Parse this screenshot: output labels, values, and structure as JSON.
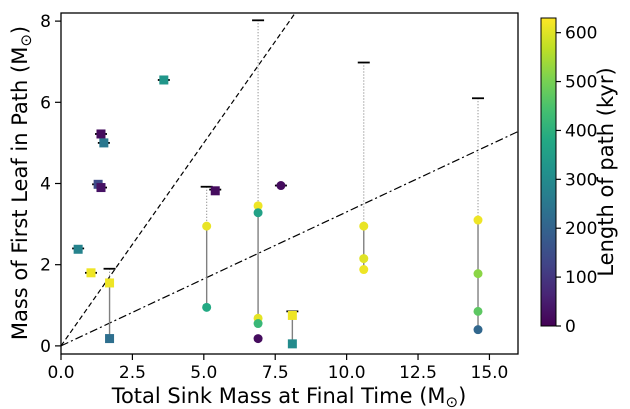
{
  "chart_data": {
    "type": "scatter",
    "xlabel": "Total Sink Mass at Final Time (M",
    "xlabel_sub": "⊙",
    "xlabel_close": ")",
    "ylabel": "Mass of First Leaf in Path (M",
    "ylabel_sub": "⊙",
    "ylabel_close": ")",
    "colorbar_label": "Length of path (kyr)",
    "xlim": [
      0,
      16
    ],
    "ylim": [
      -0.2,
      8.2
    ],
    "x_ticks": [
      0.0,
      2.5,
      5.0,
      7.5,
      10.0,
      12.5,
      15.0
    ],
    "x_tick_labels": [
      "0.0",
      "2.5",
      "5.0",
      "7.5",
      "10.0",
      "12.5",
      "15.0"
    ],
    "y_ticks": [
      0,
      2,
      4,
      6,
      8
    ],
    "y_tick_labels": [
      "0",
      "2",
      "4",
      "6",
      "8"
    ],
    "colorbar_range": [
      0,
      630
    ],
    "colorbar_ticks": [
      0,
      100,
      200,
      300,
      400,
      500,
      600
    ],
    "colorbar_tick_labels": [
      "0",
      "100",
      "200",
      "300",
      "400",
      "500",
      "600"
    ],
    "colormap": "viridis",
    "reference_lines": [
      {
        "style": "dashed",
        "slope": 1.0
      },
      {
        "style": "dashdot",
        "slope": 0.33
      }
    ],
    "total_mass_marks": [
      {
        "x": 0.6,
        "y": 2.4
      },
      {
        "x": 1.05,
        "y": 1.8
      },
      {
        "x": 1.3,
        "y": 3.98
      },
      {
        "x": 1.4,
        "y": 3.9
      },
      {
        "x": 1.4,
        "y": 5.22
      },
      {
        "x": 1.5,
        "y": 5.0
      },
      {
        "x": 1.7,
        "y": 1.9
      },
      {
        "x": 3.6,
        "y": 6.55
      },
      {
        "x": 5.1,
        "y": 3.92
      },
      {
        "x": 5.4,
        "y": 3.85
      },
      {
        "x": 6.9,
        "y": 8.02
      },
      {
        "x": 7.7,
        "y": 3.95
      },
      {
        "x": 8.1,
        "y": 0.85
      },
      {
        "x": 10.6,
        "y": 6.98
      },
      {
        "x": 14.6,
        "y": 6.1
      }
    ],
    "connectors": [
      {
        "x": 1.7,
        "from": 1.9,
        "to": 1.55,
        "style": "dotted"
      },
      {
        "x": 1.7,
        "from": 1.55,
        "to": 0.18,
        "style": "solid"
      },
      {
        "x": 5.1,
        "from": 3.92,
        "to": 2.95,
        "style": "dotted"
      },
      {
        "x": 5.1,
        "from": 2.95,
        "to": 0.95,
        "style": "solid"
      },
      {
        "x": 6.9,
        "from": 8.02,
        "to": 3.45,
        "style": "dotted"
      },
      {
        "x": 6.9,
        "from": 3.45,
        "to": 0.55,
        "style": "solid"
      },
      {
        "x": 8.1,
        "from": 0.85,
        "to": 0.75,
        "style": "dotted"
      },
      {
        "x": 8.1,
        "from": 0.75,
        "to": 0.05,
        "style": "solid"
      },
      {
        "x": 10.6,
        "from": 6.98,
        "to": 2.95,
        "style": "dotted"
      },
      {
        "x": 10.6,
        "from": 2.95,
        "to": 1.88,
        "style": "solid"
      },
      {
        "x": 14.6,
        "from": 6.1,
        "to": 3.1,
        "style": "dotted"
      },
      {
        "x": 14.6,
        "from": 3.1,
        "to": 0.4,
        "style": "solid"
      }
    ],
    "points": [
      {
        "x": 0.6,
        "y": 2.38,
        "length": 280,
        "marker": "square"
      },
      {
        "x": 1.05,
        "y": 1.8,
        "length": 615,
        "marker": "square"
      },
      {
        "x": 1.3,
        "y": 3.98,
        "length": 140,
        "marker": "square"
      },
      {
        "x": 1.4,
        "y": 3.9,
        "length": 30,
        "marker": "square"
      },
      {
        "x": 1.4,
        "y": 5.22,
        "length": 20,
        "marker": "square"
      },
      {
        "x": 1.5,
        "y": 5.0,
        "length": 250,
        "marker": "square"
      },
      {
        "x": 1.7,
        "y": 1.55,
        "length": 615,
        "marker": "square"
      },
      {
        "x": 1.7,
        "y": 0.18,
        "length": 230,
        "marker": "square"
      },
      {
        "x": 3.6,
        "y": 6.55,
        "length": 330,
        "marker": "square"
      },
      {
        "x": 5.1,
        "y": 2.95,
        "length": 610,
        "marker": "circle"
      },
      {
        "x": 5.1,
        "y": 0.95,
        "length": 380,
        "marker": "circle"
      },
      {
        "x": 5.4,
        "y": 3.82,
        "length": 20,
        "marker": "square"
      },
      {
        "x": 6.9,
        "y": 3.45,
        "length": 615,
        "marker": "circle"
      },
      {
        "x": 6.9,
        "y": 3.28,
        "length": 360,
        "marker": "circle"
      },
      {
        "x": 6.9,
        "y": 0.68,
        "length": 605,
        "marker": "circle"
      },
      {
        "x": 6.9,
        "y": 0.55,
        "length": 420,
        "marker": "circle"
      },
      {
        "x": 6.9,
        "y": 0.18,
        "length": 20,
        "marker": "circle"
      },
      {
        "x": 7.7,
        "y": 3.95,
        "length": 20,
        "marker": "circle"
      },
      {
        "x": 8.1,
        "y": 0.75,
        "length": 615,
        "marker": "square"
      },
      {
        "x": 8.1,
        "y": 0.05,
        "length": 300,
        "marker": "square"
      },
      {
        "x": 10.6,
        "y": 2.95,
        "length": 610,
        "marker": "circle"
      },
      {
        "x": 10.6,
        "y": 2.15,
        "length": 600,
        "marker": "circle"
      },
      {
        "x": 10.6,
        "y": 1.88,
        "length": 615,
        "marker": "circle"
      },
      {
        "x": 14.6,
        "y": 3.1,
        "length": 615,
        "marker": "circle"
      },
      {
        "x": 14.6,
        "y": 1.78,
        "length": 520,
        "marker": "circle"
      },
      {
        "x": 14.6,
        "y": 0.85,
        "length": 470,
        "marker": "circle"
      },
      {
        "x": 14.6,
        "y": 0.4,
        "length": 210,
        "marker": "circle"
      }
    ]
  }
}
